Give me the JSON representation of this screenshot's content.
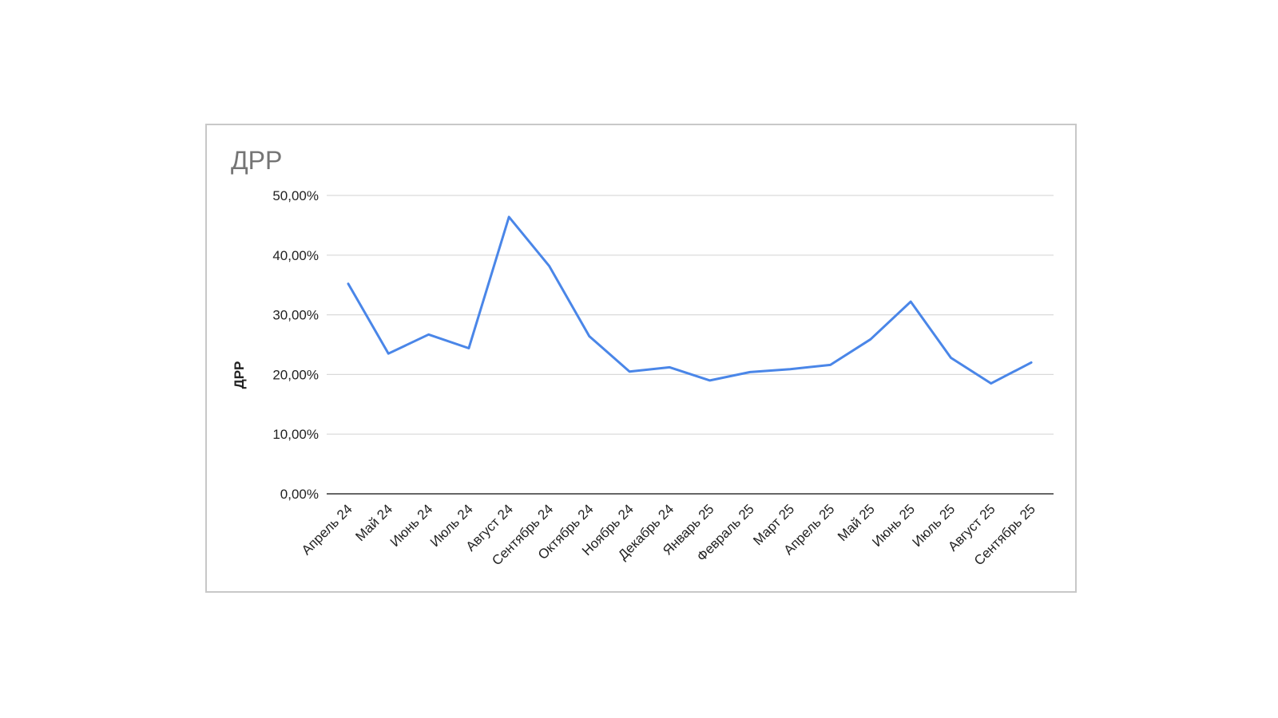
{
  "chart_data": {
    "type": "line",
    "title": "ДРР",
    "xlabel": "",
    "ylabel": "ДРР",
    "categories": [
      "Апрель 24",
      "Май 24",
      "Июнь 24",
      "Июль 24",
      "Август 24",
      "Сентябрь 24",
      "Октябрь 24",
      "Ноябрь 24",
      "Декабрь 24",
      "Январь 25",
      "Февраль 25",
      "Март 25",
      "Апрель 25",
      "Май 25",
      "Июнь 25",
      "Июль 25",
      "Август 25",
      "Сентябрь 25"
    ],
    "series": [
      {
        "values": [
          35.2,
          23.5,
          26.7,
          24.4,
          46.4,
          38.2,
          26.4,
          20.5,
          21.2,
          19.0,
          20.4,
          20.9,
          21.6,
          25.9,
          32.2,
          22.8,
          18.5,
          22.0
        ],
        "color": "#4a86e8"
      }
    ],
    "ylim": [
      0,
      50
    ],
    "yticks": [
      "0,00%",
      "10,00%",
      "20,00%",
      "30,00%",
      "40,00%",
      "50,00%"
    ],
    "grid": true,
    "legend": "none"
  }
}
